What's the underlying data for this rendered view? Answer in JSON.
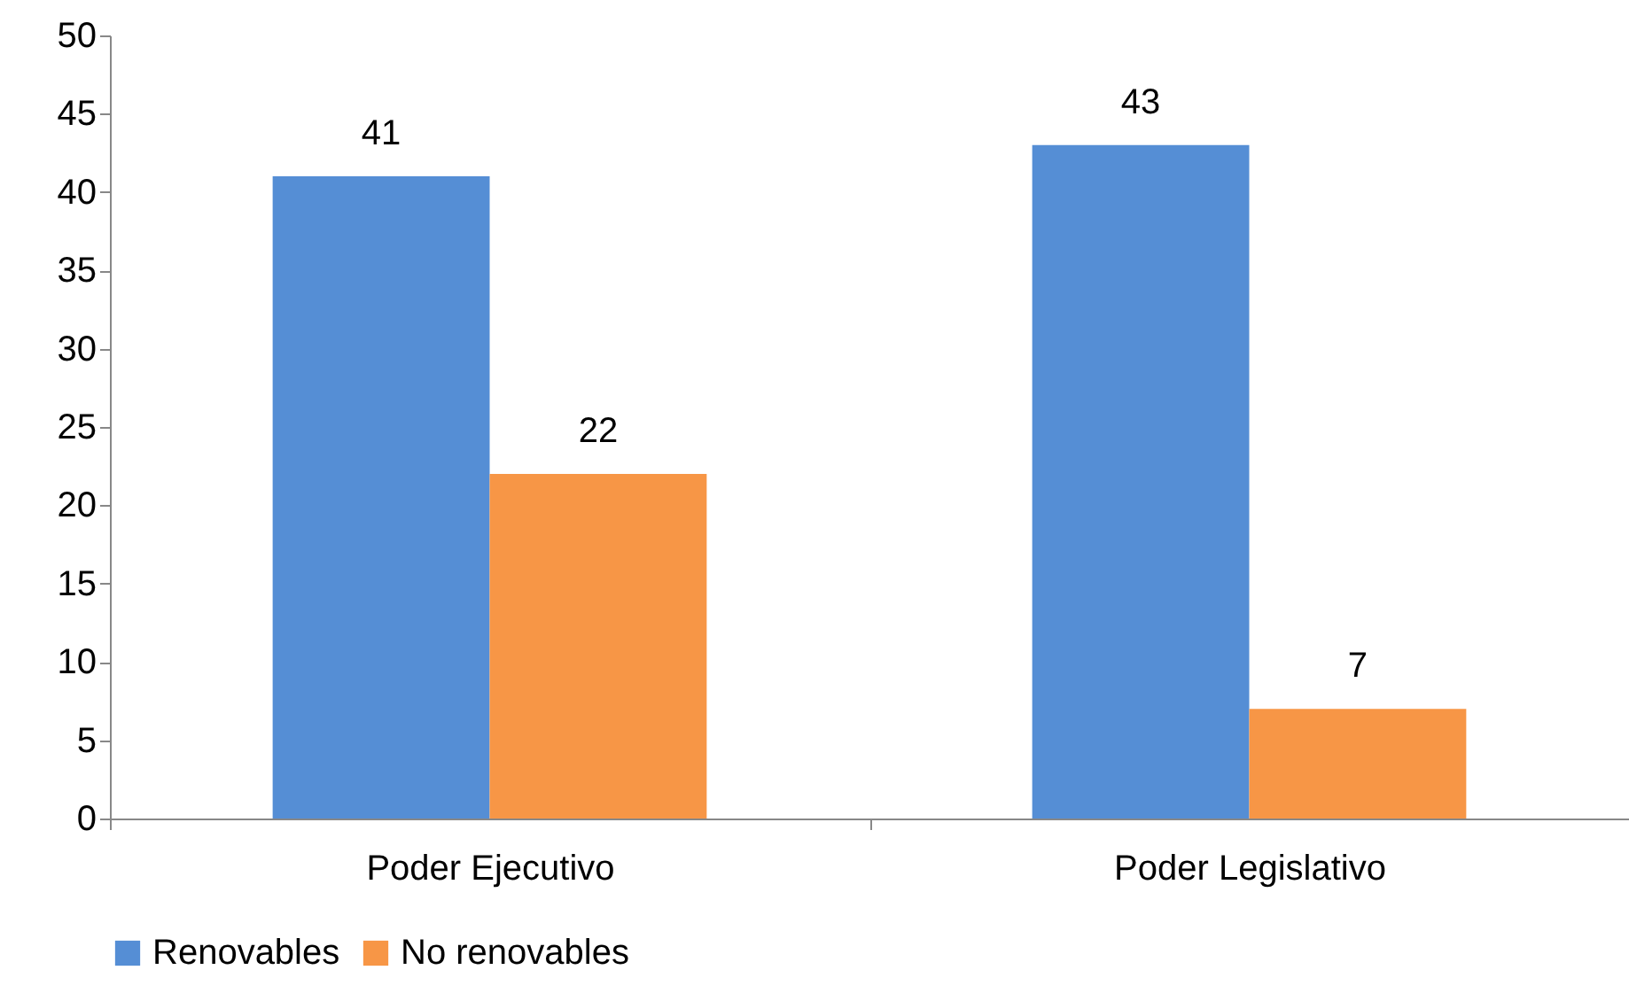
{
  "chart_data": {
    "type": "bar",
    "categories": [
      "Poder Ejecutivo",
      "Poder Legislativo"
    ],
    "series": [
      {
        "name": "Renovables",
        "color": "#558ed5",
        "values": [
          41,
          43
        ]
      },
      {
        "name": "No renovables",
        "color": "#f79646",
        "values": [
          22,
          7
        ]
      }
    ],
    "ylim": [
      0,
      50
    ],
    "yticks": [
      0,
      5,
      10,
      15,
      20,
      25,
      30,
      35,
      40,
      45,
      50
    ],
    "grid": false,
    "legend": "bottom",
    "data_labels": true
  }
}
